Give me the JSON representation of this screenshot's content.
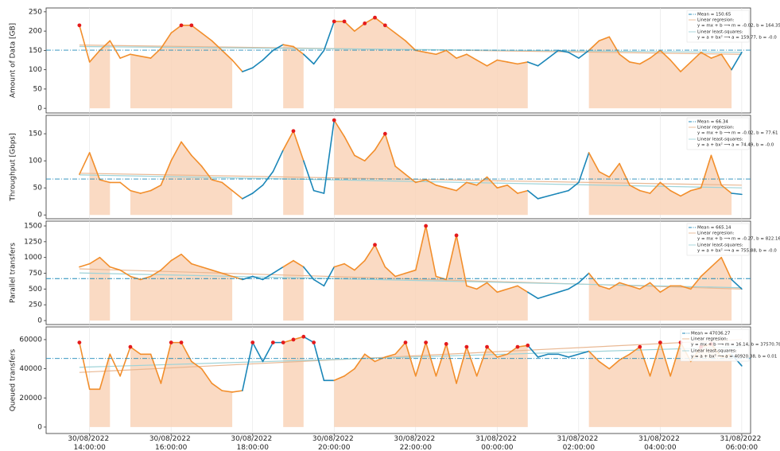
{
  "chart_data": {
    "type": "line",
    "x": [
      "30/08/2022 13:45:00",
      "30/08/2022 14:00:00",
      "30/08/2022 14:15:00",
      "30/08/2022 14:30:00",
      "30/08/2022 14:45:00",
      "30/08/2022 15:00:00",
      "30/08/2022 15:15:00",
      "30/08/2022 15:30:00",
      "30/08/2022 15:45:00",
      "30/08/2022 16:00:00",
      "30/08/2022 16:15:00",
      "30/08/2022 16:30:00",
      "30/08/2022 16:45:00",
      "30/08/2022 17:00:00",
      "30/08/2022 17:15:00",
      "30/08/2022 17:30:00",
      "30/08/2022 17:45:00",
      "30/08/2022 18:00:00",
      "30/08/2022 18:15:00",
      "30/08/2022 18:30:00",
      "30/08/2022 18:45:00",
      "30/08/2022 19:00:00",
      "30/08/2022 19:15:00",
      "30/08/2022 19:30:00",
      "30/08/2022 19:45:00",
      "30/08/2022 20:00:00",
      "30/08/2022 20:15:00",
      "30/08/2022 20:30:00",
      "30/08/2022 20:45:00",
      "30/08/2022 21:00:00",
      "30/08/2022 21:15:00",
      "30/08/2022 21:30:00",
      "30/08/2022 21:45:00",
      "30/08/2022 22:00:00",
      "30/08/2022 22:15:00",
      "30/08/2022 22:30:00",
      "30/08/2022 22:45:00",
      "30/08/2022 23:00:00",
      "30/08/2022 23:15:00",
      "30/08/2022 23:30:00",
      "30/08/2022 23:45:00",
      "31/08/2022 00:00:00",
      "31/08/2022 00:15:00",
      "31/08/2022 00:30:00",
      "31/08/2022 00:45:00",
      "31/08/2022 01:00:00",
      "31/08/2022 01:15:00",
      "31/08/2022 01:30:00",
      "31/08/2022 01:45:00",
      "31/08/2022 02:00:00",
      "31/08/2022 02:15:00",
      "31/08/2022 02:30:00",
      "31/08/2022 02:45:00",
      "31/08/2022 03:00:00",
      "31/08/2022 03:15:00",
      "31/08/2022 03:30:00",
      "31/08/2022 03:45:00",
      "31/08/2022 04:00:00",
      "31/08/2022 04:15:00",
      "31/08/2022 04:30:00",
      "31/08/2022 04:45:00",
      "31/08/2022 05:00:00",
      "31/08/2022 05:15:00",
      "31/08/2022 05:30:00",
      "31/08/2022 05:45:00",
      "31/08/2022 06:00:00"
    ],
    "xlim": [
      "30/08/2022 12:56:00",
      "31/08/2022 06:13:00"
    ],
    "xticks": [
      "30/08/2022 14:00:00",
      "30/08/2022 16:00:00",
      "30/08/2022 18:00:00",
      "30/08/2022 20:00:00",
      "30/08/2022 22:00:00",
      "31/08/2022 00:00:00",
      "31/08/2022 02:00:00",
      "31/08/2022 04:00:00",
      "31/08/2022 06:00:00"
    ],
    "shaded_ranges": [
      [
        "30/08/2022 13:50:00",
        "30/08/2022 14:43:00"
      ],
      [
        "30/08/2022 14:46:00",
        "30/08/2022 17:42:00"
      ],
      [
        "30/08/2022 18:38:00",
        "30/08/2022 19:20:00"
      ],
      [
        "30/08/2022 19:54:00",
        "31/08/2022 00:50:00"
      ],
      [
        "31/08/2022 02:13:00",
        "31/08/2022 05:47:00"
      ]
    ],
    "line_color": "#1a86b8",
    "shaded_line_color": "#f28e2b",
    "shade_color": "#f9d3b8",
    "highlight_color": "#e41a1c",
    "mean_color": "#1f8ab8",
    "regression_color": "#e9b893",
    "least_squares_color": "#9fd3d8",
    "grid": true,
    "legend": "upper right",
    "panels": [
      {
        "ylabel": "Amount of Data [GB]",
        "ylim": [
          -12,
          260
        ],
        "yticks": [
          0,
          50,
          100,
          150,
          200,
          250
        ],
        "values": [
          215,
          120,
          150,
          175,
          130,
          140,
          135,
          130,
          155,
          195,
          215,
          215,
          195,
          175,
          150,
          125,
          95,
          105,
          125,
          150,
          165,
          160,
          140,
          115,
          150,
          225,
          225,
          200,
          220,
          235,
          215,
          195,
          175,
          150,
          145,
          140,
          150,
          130,
          140,
          125,
          110,
          125,
          120,
          115,
          120,
          110,
          130,
          150,
          145,
          130,
          150,
          175,
          185,
          140,
          120,
          115,
          130,
          150,
          125,
          95,
          120,
          145,
          130,
          140,
          100,
          145
        ],
        "markers": [
          215,
          null,
          null,
          null,
          null,
          null,
          null,
          null,
          null,
          null,
          215,
          215,
          null,
          null,
          null,
          null,
          null,
          null,
          null,
          null,
          null,
          null,
          null,
          null,
          null,
          225,
          225,
          null,
          220,
          235,
          215,
          null,
          null,
          null,
          null,
          null,
          null,
          null,
          null,
          null,
          null,
          null,
          null,
          null,
          null,
          null,
          null,
          null,
          null,
          null,
          null,
          null,
          null,
          null,
          null,
          null,
          null,
          null,
          null,
          null,
          null,
          null,
          null,
          null,
          null,
          null
        ],
        "mean": 150.65,
        "regression": [
          164,
          140
        ],
        "least_squares": [
          160,
          145
        ],
        "legend_texts": [
          "Mean = 150.65",
          "Linear regresion:",
          "y = mx + b ⟶ m = -0.02, b = 164.35",
          "Linear least-squares:",
          "y = a + bx² ⟶ a = 159.77, b = -0.0"
        ]
      },
      {
        "ylabel": "Throughput [Gbps]",
        "ylim": [
          -7,
          184
        ],
        "yticks": [
          0,
          50,
          100,
          150
        ],
        "values": [
          75,
          115,
          65,
          60,
          60,
          45,
          40,
          45,
          55,
          100,
          135,
          110,
          90,
          65,
          60,
          45,
          30,
          40,
          55,
          80,
          120,
          155,
          100,
          45,
          40,
          175,
          145,
          110,
          100,
          120,
          150,
          90,
          75,
          60,
          65,
          55,
          50,
          45,
          60,
          55,
          70,
          50,
          55,
          40,
          45,
          30,
          35,
          40,
          45,
          60,
          115,
          80,
          70,
          95,
          55,
          45,
          40,
          60,
          45,
          35,
          45,
          50,
          110,
          55,
          40,
          38
        ],
        "markers": [
          null,
          null,
          null,
          null,
          null,
          null,
          null,
          null,
          null,
          null,
          null,
          null,
          null,
          null,
          null,
          null,
          null,
          null,
          null,
          null,
          null,
          155,
          null,
          null,
          null,
          175,
          null,
          null,
          null,
          null,
          150,
          null,
          null,
          null,
          null,
          null,
          null,
          null,
          null,
          null,
          null,
          null,
          null,
          null,
          null,
          null,
          null,
          null,
          null,
          null,
          null,
          null,
          null,
          null,
          null,
          null,
          null,
          null,
          null,
          null,
          null,
          null,
          null,
          null,
          null,
          null
        ],
        "mean": 66.34,
        "regression": [
          77,
          55
        ],
        "least_squares": [
          74,
          50
        ],
        "legend_texts": [
          "Mean = 66.34",
          "Linear regresion:",
          "y = mx + b ⟶ m = -0.02, b = 77.61",
          "Linear least-squares:",
          "y = a + bx² ⟶ a = 74.49, b = -0.0"
        ]
      },
      {
        "ylabel": "Parallel transfers",
        "ylim": [
          -63,
          1576
        ],
        "yticks": [
          0,
          250,
          500,
          750,
          1000,
          1250,
          1500
        ],
        "values": [
          850,
          900,
          1000,
          850,
          800,
          700,
          650,
          700,
          800,
          950,
          1050,
          900,
          850,
          800,
          750,
          700,
          650,
          700,
          650,
          750,
          850,
          950,
          850,
          650,
          550,
          850,
          900,
          800,
          950,
          1200,
          850,
          700,
          750,
          800,
          1500,
          700,
          650,
          1350,
          550,
          500,
          600,
          450,
          500,
          550,
          450,
          350,
          400,
          450,
          500,
          600,
          750,
          550,
          500,
          600,
          550,
          500,
          600,
          450,
          550,
          550,
          500,
          700,
          850,
          1000,
          650,
          500
        ],
        "markers": [
          null,
          null,
          null,
          null,
          null,
          null,
          null,
          null,
          null,
          null,
          null,
          null,
          null,
          null,
          null,
          null,
          null,
          null,
          null,
          null,
          null,
          null,
          null,
          null,
          null,
          null,
          null,
          null,
          null,
          1200,
          null,
          null,
          null,
          null,
          1500,
          null,
          null,
          1350,
          null,
          null,
          null,
          null,
          null,
          null,
          null,
          null,
          null,
          null,
          null,
          null,
          null,
          null,
          null,
          null,
          null,
          null,
          null,
          null,
          null,
          null,
          null,
          null,
          null,
          null,
          null,
          null
        ],
        "mean": 665.14,
        "regression": [
          820,
          500
        ],
        "least_squares": [
          755,
          520
        ],
        "legend_texts": [
          "Mean = 665.14",
          "Linear regresion:",
          "y = mx + b ⟶ m = -0.27, b = 822.16",
          "Linear least-squares:",
          "y = a + bx² ⟶ a = 755.88, b = -0.0"
        ]
      },
      {
        "ylabel": "Queued transfers",
        "ylim": [
          -4400,
          68700
        ],
        "yticks": [
          0,
          20000,
          40000,
          60000
        ],
        "values": [
          58000,
          26000,
          26000,
          50000,
          35000,
          55000,
          50000,
          50000,
          30000,
          58000,
          58000,
          45000,
          40000,
          30000,
          25000,
          24000,
          25000,
          58000,
          45000,
          58000,
          58000,
          60000,
          62000,
          58000,
          32000,
          32000,
          35000,
          40000,
          50000,
          45000,
          48000,
          50000,
          58000,
          35000,
          58000,
          35000,
          57000,
          30000,
          55000,
          35000,
          55000,
          48000,
          50000,
          55000,
          56000,
          48000,
          50000,
          50000,
          48000,
          50000,
          52000,
          45000,
          40000,
          46000,
          50000,
          55000,
          35000,
          58000,
          35000,
          58000,
          45000,
          55000,
          57000,
          48000,
          50000,
          42000
        ],
        "markers": [
          58000,
          null,
          null,
          null,
          null,
          55000,
          null,
          null,
          null,
          58000,
          58000,
          null,
          null,
          null,
          null,
          null,
          null,
          58000,
          null,
          58000,
          58000,
          60000,
          62000,
          58000,
          null,
          null,
          null,
          null,
          null,
          null,
          null,
          null,
          58000,
          null,
          58000,
          null,
          57000,
          null,
          55000,
          null,
          55000,
          null,
          null,
          55000,
          56000,
          null,
          null,
          null,
          null,
          null,
          null,
          null,
          null,
          null,
          null,
          55000,
          null,
          58000,
          null,
          58000,
          null,
          55000,
          57000,
          null,
          null,
          null
        ],
        "mean": 47036.27,
        "regression": [
          37500,
          60000
        ],
        "least_squares": [
          41000,
          55000
        ],
        "legend_texts": [
          "Mean = 47036.27",
          "Linear regresion:",
          "y = mx + b ⟶ m = 16.14, b = 37570.78",
          "Linear least-squares:",
          "y = a + bx² ⟶ a = 40920.38, b = 0.01"
        ]
      }
    ]
  }
}
